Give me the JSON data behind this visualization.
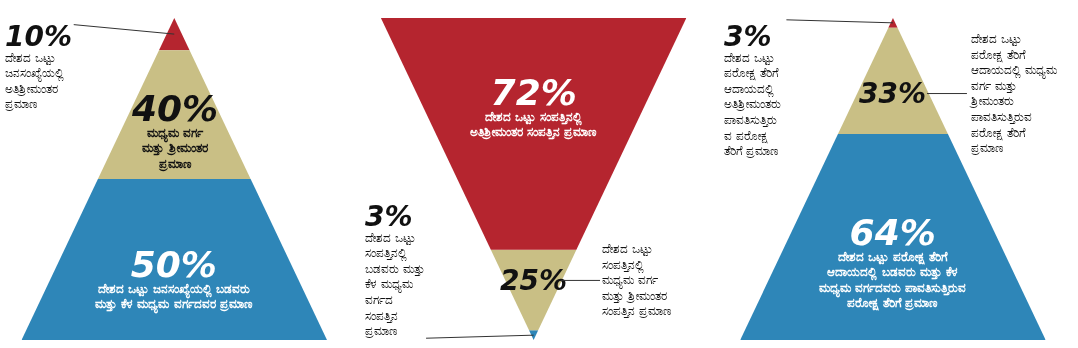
{
  "chart_data": [
    {
      "type": "other",
      "categories": [
        "ದೇಶದ ಒಟ್ಟು ಜನಸಂಖ್ಯೆಯಲ್ಲಿ ಅತಿಶ್ರೀಮಂತರ ಪ್ರಮಾಣ",
        "ಮಧ್ಯಮ ವರ್ಗ ಮತ್ತು ಶ್ರೀಮಂತರ ಪ್ರಮಾಣ",
        "ದೇಶದ ಒಟ್ಟು ಜನಸಂಖ್ಯೆಯಲ್ಲಿ ಬಡವರು ಮತ್ತು ಕೆಳ ಮಧ್ಯಮ ವರ್ಗದವರ ಪ್ರಮಾಣ"
      ],
      "values": [
        10,
        40,
        50
      ],
      "value_labels": [
        "10%",
        "40%",
        "50%"
      ],
      "colors": [
        "#b5252f",
        "#c9bf85",
        "#2e86b8"
      ]
    },
    {
      "type": "other",
      "categories": [
        "ದೇಶದ ಒಟ್ಟು ಸಂಪತ್ತಿನಲ್ಲಿ ಅತಿಶ್ರೀಮಂತರ ಸಂಪತ್ತಿನ ಪ್ರಮಾಣ",
        "ದೇಶದ ಒಟ್ಟು ಸಂಪತ್ತಿನಲ್ಲಿ ಮಧ್ಯಮ ವರ್ಗ ಮತ್ತು ಶ್ರೀಮಂತರ ಸಂಪತ್ತಿನ ಪ್ರಮಾಣ",
        "ದೇಶದ ಒಟ್ಟು ಸಂಪತ್ತಿನಲ್ಲಿ ಬಡವರು ಮತ್ತು ಕೆಳ ಮಧ್ಯಮ ವರ್ಗದ ಸಂಪತ್ತಿನ ಪ್ರಮಾಣ"
      ],
      "values": [
        72,
        25,
        3
      ],
      "value_labels": [
        "72%",
        "25%",
        "3%"
      ],
      "colors": [
        "#b5252f",
        "#c9bf85",
        "#2e86b8"
      ]
    },
    {
      "type": "other",
      "categories": [
        "ದೇಶದ ಒಟ್ಟು ಪರೋಕ್ಷ ತೆರಿಗೆ ಆದಾಯದಲ್ಲಿ ಅತಿಶ್ರೀಮಂತರು ಪಾವತಿಸುತ್ತಿರುವ ಪರೋಕ್ಷ ತೆರಿಗೆ ಪ್ರಮಾಣ",
        "ದೇಶದ ಒಟ್ಟು ಪರೋಕ್ಷ ತೆರಿಗೆ ಆದಾಯದಲ್ಲಿ ಮಧ್ಯಮ ವರ್ಗ ಮತ್ತು ಶ್ರೀಮಂತರು ಪಾವತಿಸುತ್ತಿರುವ ಪರೋಕ್ಷ ತೆರಿಗೆ ಪ್ರಮಾಣ",
        "ದೇಶದ ಒಟ್ಟು ಪರೋಕ್ಷ ತೆರಿಗೆ ಆದಾಯದಲ್ಲಿ ಬಡವರು ಮತ್ತು ಕೆಳ ಮಧ್ಯಮ ವರ್ಗದವರು ಪಾವತಿಸುತ್ತಿರುವ ಪರೋಕ್ಷ ತೆರಿಗೆ ಪ್ರಮಾಣ"
      ],
      "values": [
        3,
        33,
        64
      ],
      "value_labels": [
        "3%",
        "33%",
        "64%"
      ],
      "colors": [
        "#b5252f",
        "#c9bf85",
        "#2e86b8"
      ]
    }
  ]
}
